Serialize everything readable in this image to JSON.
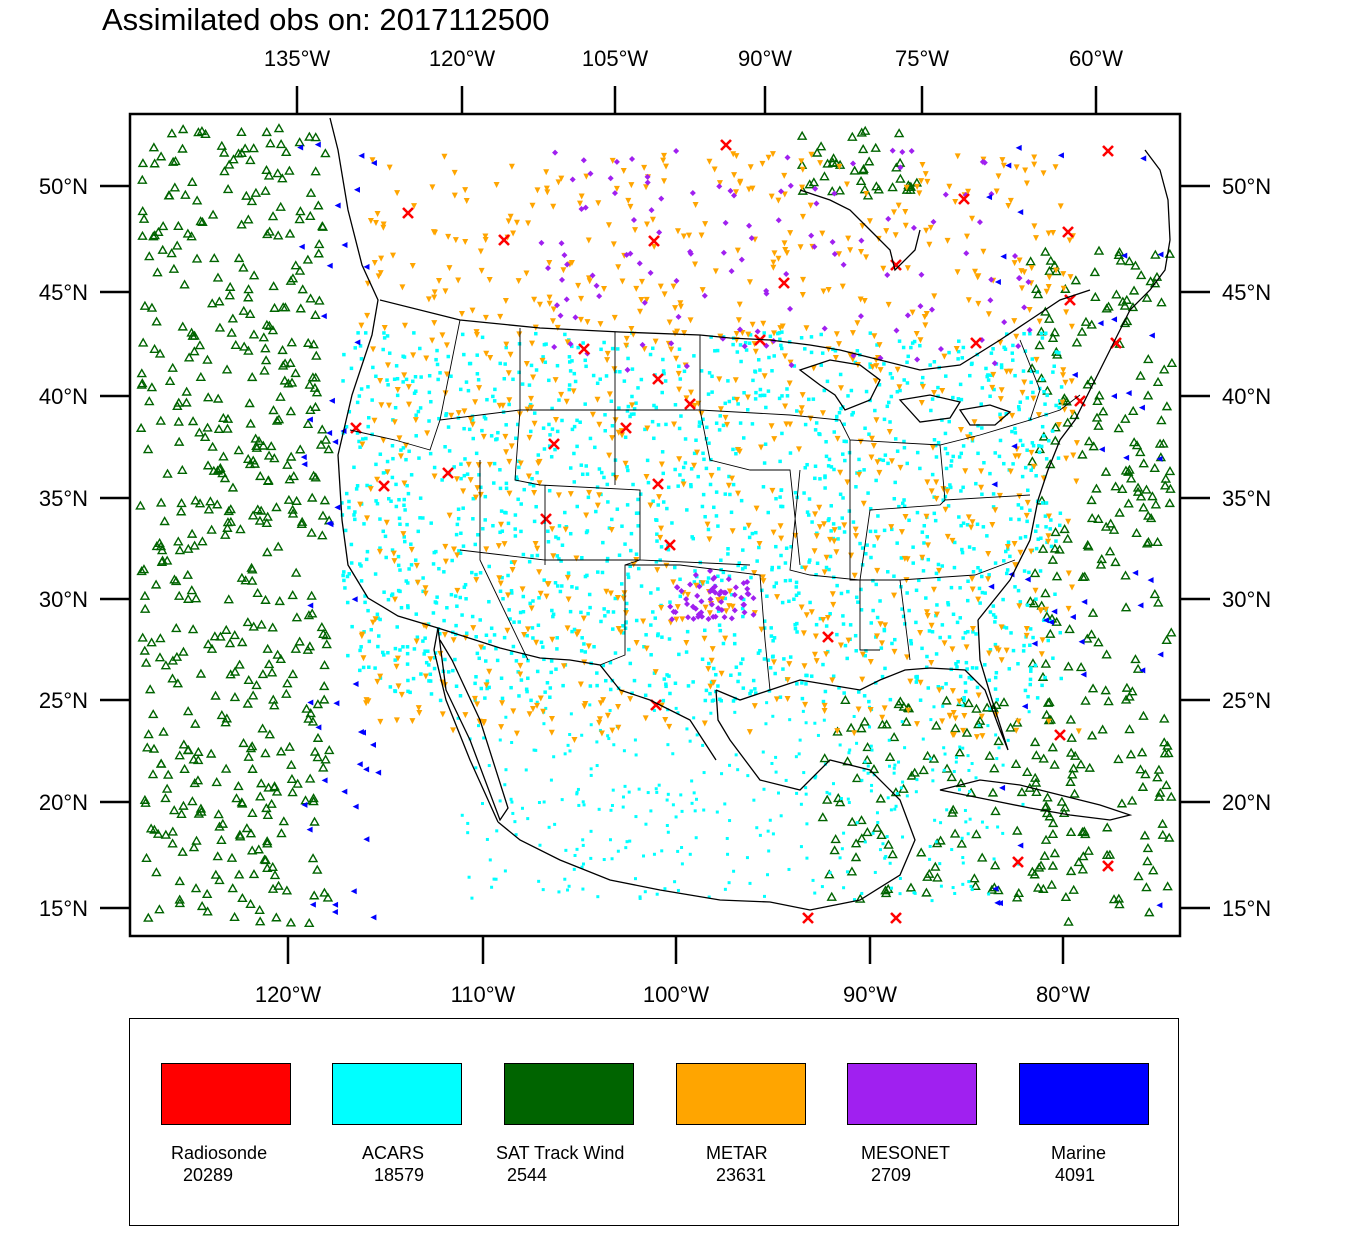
{
  "title": "Assimilated obs on: 2017112500",
  "axes": {
    "top_lon_labels": [
      "135°W",
      "120°W",
      "105°W",
      "90°W",
      "75°W",
      "60°W"
    ],
    "bottom_lon_labels": [
      "120°W",
      "110°W",
      "100°W",
      "90°W",
      "80°W"
    ],
    "lat_labels": [
      "50°N",
      "45°N",
      "40°N",
      "35°N",
      "30°N",
      "25°N",
      "20°N",
      "15°N"
    ]
  },
  "legend": [
    {
      "name": "Radiosonde",
      "count": "20289",
      "color": "#ff0000",
      "marker": "x-icon"
    },
    {
      "name": "ACARS",
      "count": "18579",
      "color": "#00ffff",
      "marker": "square-dot-icon"
    },
    {
      "name": "SAT Track Wind",
      "count": "2544",
      "color": "#006400",
      "marker": "triangle-outline-icon"
    },
    {
      "name": "METAR",
      "count": "23631",
      "color": "#ffa500",
      "marker": "triangle-down-icon"
    },
    {
      "name": "MESONET",
      "count": "2709",
      "color": "#a020f0",
      "marker": "diamond-icon"
    },
    {
      "name": "Marine",
      "count": "4091",
      "color": "#0000ff",
      "marker": "triangle-left-icon"
    }
  ]
}
